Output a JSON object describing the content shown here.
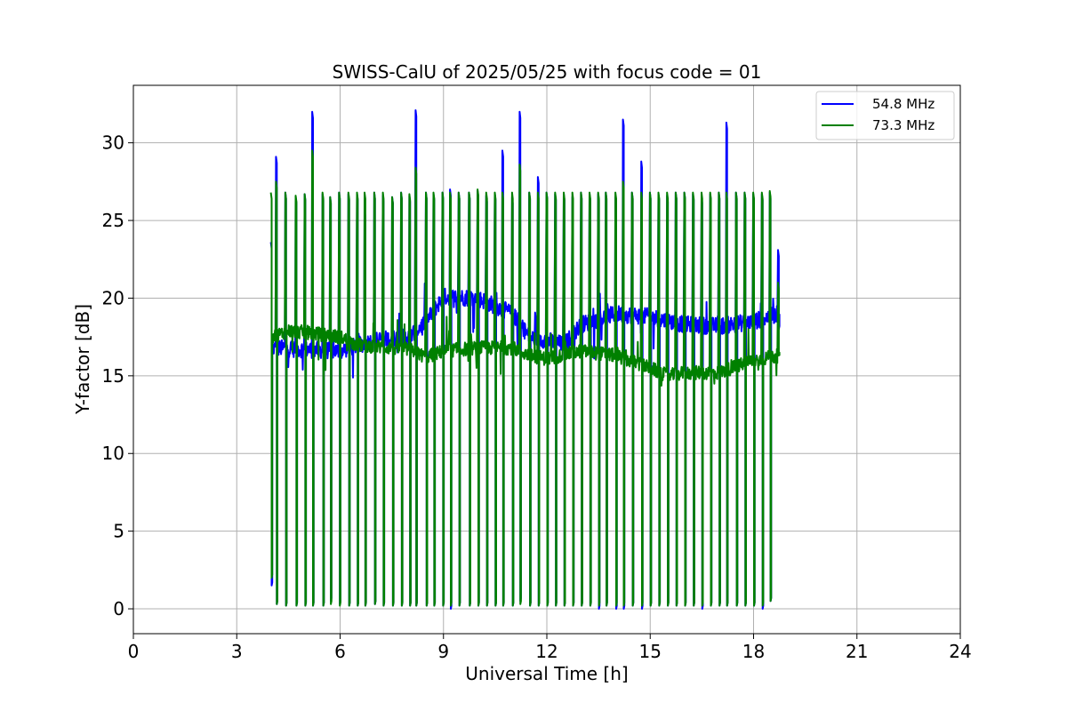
{
  "chart_data": {
    "type": "line",
    "title": "SWISS-CalU of 2025/05/25 with focus code = 01",
    "xlabel": "Universal Time [h]",
    "ylabel": "Y-factor [dB]",
    "xlim": [
      0,
      24
    ],
    "ylim": [
      -1.6,
      33.7
    ],
    "xticks": [
      0,
      3,
      6,
      9,
      12,
      15,
      18,
      21,
      24
    ],
    "xtick_labels": [
      "0",
      "3",
      "6",
      "9",
      "12",
      "15",
      "18",
      "21",
      "24"
    ],
    "yticks": [
      0,
      5,
      10,
      15,
      20,
      25,
      30
    ],
    "ytick_labels": [
      "0",
      "5",
      "10",
      "15",
      "20",
      "25",
      "30"
    ],
    "grid": true,
    "legend_position": "top-right",
    "series": [
      {
        "name": "54.8 MHz",
        "color": "#0000ff",
        "time_range": [
          4.0,
          18.75
        ],
        "baseline": [
          [
            4.0,
            16.8
          ],
          [
            5.0,
            16.7
          ],
          [
            6.0,
            16.6
          ],
          [
            7.0,
            17.3
          ],
          [
            8.0,
            17.5
          ],
          [
            8.5,
            18.5
          ],
          [
            9.0,
            20.1
          ],
          [
            10.0,
            20.0
          ],
          [
            11.0,
            19.0
          ],
          [
            11.5,
            17.5
          ],
          [
            12.0,
            17.3
          ],
          [
            12.5,
            17.0
          ],
          [
            13.0,
            18.3
          ],
          [
            14.0,
            19.0
          ],
          [
            15.0,
            18.8
          ],
          [
            16.0,
            18.3
          ],
          [
            17.0,
            18.2
          ],
          [
            18.0,
            18.5
          ],
          [
            18.75,
            19.0
          ]
        ],
        "pulses": [
          [
            4.0,
            23.6,
            1.5
          ],
          [
            4.15,
            29.1,
            0.3
          ],
          [
            4.42,
            26.8,
            0.2
          ],
          [
            4.72,
            26.5,
            0.2
          ],
          [
            4.98,
            26.7,
            0.2
          ],
          [
            5.2,
            32.0,
            0.2
          ],
          [
            5.5,
            26.7,
            0.2
          ],
          [
            5.72,
            26.5,
            0.5
          ],
          [
            5.98,
            26.8,
            0.3
          ],
          [
            6.25,
            26.7,
            0.2
          ],
          [
            6.5,
            26.7,
            0.2
          ],
          [
            6.72,
            25.7,
            0.2
          ],
          [
            7.0,
            26.8,
            0.3
          ],
          [
            7.25,
            26.6,
            0.2
          ],
          [
            7.52,
            26.5,
            0.2
          ],
          [
            7.78,
            26.8,
            0.2
          ],
          [
            8.02,
            26.6,
            0.2
          ],
          [
            8.2,
            32.1,
            0.2
          ],
          [
            8.5,
            26.8,
            0.2
          ],
          [
            8.72,
            26.7,
            0.2
          ],
          [
            8.98,
            26.8,
            0.2
          ],
          [
            9.2,
            27.0,
            0.0
          ],
          [
            9.45,
            26.8,
            0.2
          ],
          [
            9.75,
            26.8,
            0.2
          ],
          [
            10.0,
            26.9,
            0.2
          ],
          [
            10.25,
            26.6,
            0.2
          ],
          [
            10.5,
            26.7,
            0.2
          ],
          [
            10.72,
            29.5,
            0.2
          ],
          [
            11.0,
            26.5,
            0.2
          ],
          [
            11.22,
            32.0,
            0.5
          ],
          [
            11.5,
            26.8,
            0.2
          ],
          [
            11.75,
            27.8,
            0.2
          ],
          [
            12.0,
            26.8,
            0.2
          ],
          [
            12.25,
            26.7,
            0.2
          ],
          [
            12.5,
            26.7,
            0.2
          ],
          [
            12.75,
            26.5,
            0.2
          ],
          [
            13.0,
            26.8,
            0.2
          ],
          [
            13.25,
            26.7,
            0.2
          ],
          [
            13.5,
            26.7,
            0.0
          ],
          [
            13.72,
            26.8,
            0.2
          ],
          [
            14.0,
            26.5,
            0.0
          ],
          [
            14.22,
            31.5,
            0.0
          ],
          [
            14.48,
            26.8,
            0.2
          ],
          [
            14.75,
            28.8,
            0.0
          ],
          [
            15.0,
            26.8,
            0.2
          ],
          [
            15.25,
            26.7,
            0.2
          ],
          [
            15.5,
            26.6,
            0.2
          ],
          [
            15.75,
            26.8,
            0.2
          ],
          [
            16.0,
            26.8,
            0.2
          ],
          [
            16.25,
            26.7,
            0.2
          ],
          [
            16.5,
            26.5,
            0.0
          ],
          [
            16.75,
            26.7,
            0.2
          ],
          [
            17.0,
            26.8,
            0.2
          ],
          [
            17.22,
            31.3,
            0.2
          ],
          [
            17.5,
            26.8,
            0.2
          ],
          [
            17.75,
            26.8,
            0.2
          ],
          [
            18.0,
            26.7,
            0.2
          ],
          [
            18.25,
            26.7,
            0.0
          ],
          [
            18.48,
            26.8,
            0.5
          ],
          [
            18.72,
            23.1,
            18.0
          ]
        ]
      },
      {
        "name": "73.3 MHz",
        "color": "#008000",
        "time_range": [
          4.0,
          18.75
        ],
        "baseline": [
          [
            4.0,
            17.5
          ],
          [
            4.5,
            17.9
          ],
          [
            5.0,
            17.8
          ],
          [
            6.0,
            17.5
          ],
          [
            6.5,
            17.0
          ],
          [
            7.0,
            16.9
          ],
          [
            8.0,
            16.7
          ],
          [
            8.5,
            16.2
          ],
          [
            9.0,
            16.6
          ],
          [
            10.0,
            16.8
          ],
          [
            11.0,
            16.8
          ],
          [
            11.5,
            16.3
          ],
          [
            12.0,
            16.1
          ],
          [
            13.0,
            16.6
          ],
          [
            14.0,
            16.3
          ],
          [
            15.0,
            15.5
          ],
          [
            15.5,
            15.0
          ],
          [
            16.0,
            15.2
          ],
          [
            17.0,
            15.2
          ],
          [
            17.5,
            15.6
          ],
          [
            18.0,
            16.0
          ],
          [
            18.75,
            16.3
          ]
        ],
        "pulses": [
          [
            4.0,
            26.8,
            2.0
          ],
          [
            4.15,
            27.5,
            0.3
          ],
          [
            4.42,
            26.8,
            0.2
          ],
          [
            4.72,
            26.6,
            0.2
          ],
          [
            4.98,
            26.7,
            0.2
          ],
          [
            5.2,
            29.5,
            0.2
          ],
          [
            5.5,
            26.8,
            0.2
          ],
          [
            5.72,
            26.5,
            0.3
          ],
          [
            5.98,
            26.8,
            0.2
          ],
          [
            6.25,
            26.8,
            0.2
          ],
          [
            6.5,
            26.8,
            0.2
          ],
          [
            6.72,
            26.8,
            0.2
          ],
          [
            7.0,
            26.8,
            0.3
          ],
          [
            7.25,
            26.8,
            0.2
          ],
          [
            7.52,
            26.5,
            0.2
          ],
          [
            7.78,
            26.8,
            0.2
          ],
          [
            8.02,
            26.7,
            0.2
          ],
          [
            8.2,
            28.4,
            0.2
          ],
          [
            8.5,
            26.8,
            0.2
          ],
          [
            8.72,
            26.8,
            0.2
          ],
          [
            8.98,
            26.8,
            0.2
          ],
          [
            9.2,
            26.8,
            0.2
          ],
          [
            9.45,
            26.8,
            0.2
          ],
          [
            9.75,
            26.8,
            0.2
          ],
          [
            10.0,
            27.0,
            0.2
          ],
          [
            10.25,
            26.8,
            0.2
          ],
          [
            10.5,
            26.8,
            0.2
          ],
          [
            10.72,
            26.8,
            0.2
          ],
          [
            11.0,
            26.8,
            0.2
          ],
          [
            11.22,
            28.6,
            0.3
          ],
          [
            11.5,
            26.8,
            0.2
          ],
          [
            11.75,
            26.8,
            0.2
          ],
          [
            12.0,
            26.8,
            0.2
          ],
          [
            12.25,
            26.8,
            0.2
          ],
          [
            12.5,
            26.8,
            0.2
          ],
          [
            12.75,
            26.8,
            0.2
          ],
          [
            13.0,
            26.8,
            0.2
          ],
          [
            13.25,
            26.8,
            0.2
          ],
          [
            13.5,
            26.8,
            0.2
          ],
          [
            13.72,
            26.8,
            0.2
          ],
          [
            14.0,
            26.8,
            0.2
          ],
          [
            14.22,
            27.5,
            0.2
          ],
          [
            14.48,
            26.8,
            0.2
          ],
          [
            14.75,
            26.8,
            0.2
          ],
          [
            15.0,
            26.8,
            0.2
          ],
          [
            15.25,
            26.8,
            0.2
          ],
          [
            15.5,
            26.8,
            0.2
          ],
          [
            15.75,
            26.8,
            0.2
          ],
          [
            16.0,
            26.8,
            0.2
          ],
          [
            16.25,
            26.8,
            0.2
          ],
          [
            16.5,
            26.8,
            0.2
          ],
          [
            16.75,
            26.8,
            0.2
          ],
          [
            17.0,
            26.8,
            0.2
          ],
          [
            17.22,
            26.8,
            0.2
          ],
          [
            17.5,
            26.8,
            0.2
          ],
          [
            17.75,
            26.8,
            0.2
          ],
          [
            18.0,
            26.8,
            0.2
          ],
          [
            18.25,
            26.8,
            0.2
          ],
          [
            18.48,
            26.9,
            0.5
          ],
          [
            18.72,
            21.0,
            16.3
          ]
        ]
      }
    ]
  }
}
